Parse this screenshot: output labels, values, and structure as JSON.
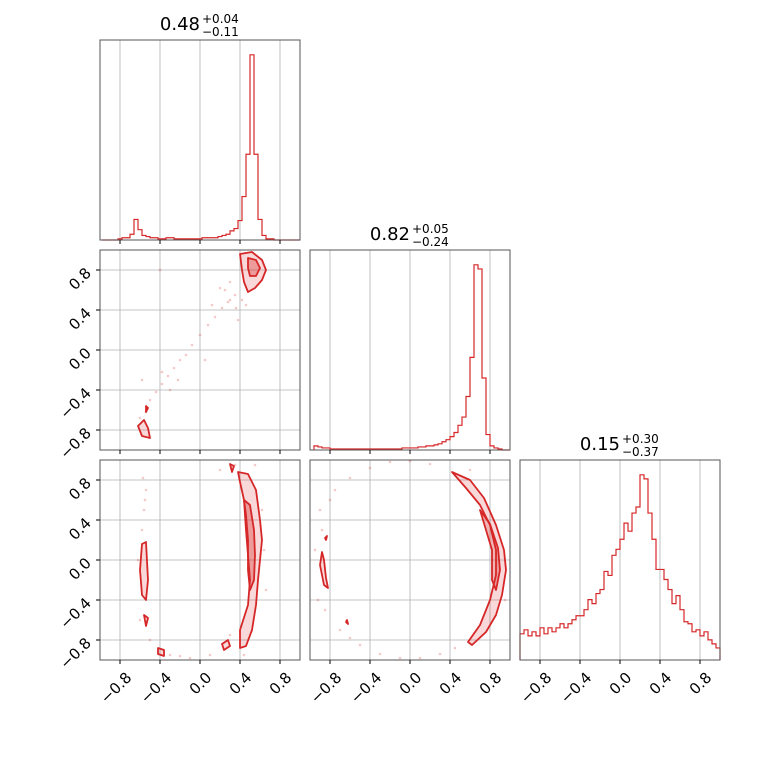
{
  "chart_data": {
    "type": "corner",
    "color": "#d62728",
    "axis_range": [
      -1.0,
      1.0
    ],
    "tick_labels": [
      "−0.8",
      "−0.4",
      "0.0",
      "0.4",
      "0.8"
    ],
    "tick_values": [
      -0.8,
      -0.4,
      0.0,
      0.4,
      0.8
    ],
    "grid": true,
    "titles": [
      {
        "median": "0.48",
        "plus": "+0.04",
        "minus": "−0.11"
      },
      {
        "median": "0.82",
        "plus": "+0.05",
        "minus": "−0.24"
      },
      {
        "median": "0.15",
        "plus": "+0.30",
        "minus": "−0.37"
      }
    ],
    "marginals": [
      {
        "bin_edges_start": -0.98,
        "bin_width": 0.04,
        "values": [
          0,
          0,
          0,
          0,
          1,
          2,
          2,
          5,
          18,
          9,
          4,
          3,
          2,
          2,
          1,
          1,
          2,
          2,
          1,
          1,
          1,
          1,
          1,
          1,
          1,
          2,
          2,
          2,
          2,
          3,
          4,
          5,
          8,
          10,
          17,
          38,
          75,
          162,
          75,
          18,
          4,
          1,
          1,
          0,
          0,
          0,
          0,
          0,
          0,
          0
        ]
      },
      {
        "bin_edges_start": -0.96,
        "bin_width": 0.04,
        "values": [
          4,
          3,
          2,
          2,
          1,
          1,
          1,
          1,
          1,
          1,
          1,
          1,
          1,
          1,
          1,
          1,
          1,
          1,
          1,
          1,
          1,
          1,
          2,
          2,
          2,
          2,
          3,
          3,
          4,
          4,
          5,
          6,
          8,
          10,
          13,
          17,
          24,
          32,
          52,
          90,
          180,
          176,
          70,
          15,
          4,
          2,
          1,
          0,
          0,
          0
        ]
      },
      {
        "bin_edges_start": -1.0,
        "bin_width": 0.04,
        "values": [
          13,
          15,
          12,
          14,
          12,
          16,
          13,
          16,
          14,
          16,
          18,
          16,
          18,
          20,
          22,
          22,
          25,
          30,
          28,
          33,
          35,
          44,
          42,
          52,
          55,
          60,
          68,
          64,
          73,
          76,
          92,
          90,
          73,
          60,
          45,
          45,
          40,
          35,
          28,
          32,
          25,
          19,
          18,
          14,
          15,
          12,
          14,
          10,
          8,
          6
        ]
      }
    ],
    "pairs": [
      {
        "x_index": 0,
        "y_index": 1,
        "contours": [
          {
            "level": "outer",
            "points": [
              [
                0.4,
                0.96
              ],
              [
                0.52,
                0.98
              ],
              [
                0.62,
                0.9
              ],
              [
                0.66,
                0.8
              ],
              [
                0.62,
                0.7
              ],
              [
                0.55,
                0.62
              ],
              [
                0.48,
                0.58
              ],
              [
                0.44,
                0.68
              ],
              [
                0.42,
                0.8
              ]
            ]
          },
          {
            "level": "inner",
            "points": [
              [
                0.48,
                0.92
              ],
              [
                0.56,
                0.9
              ],
              [
                0.6,
                0.82
              ],
              [
                0.56,
                0.74
              ],
              [
                0.5,
                0.74
              ],
              [
                0.48,
                0.82
              ]
            ]
          },
          {
            "level": "outer",
            "points": [
              [
                -0.62,
                -0.76
              ],
              [
                -0.56,
                -0.7
              ],
              [
                -0.52,
                -0.78
              ],
              [
                -0.5,
                -0.88
              ],
              [
                -0.58,
                -0.86
              ]
            ]
          },
          {
            "level": "inner",
            "points": [
              [
                -0.54,
                -0.56
              ],
              [
                -0.52,
                -0.58
              ],
              [
                -0.54,
                -0.62
              ]
            ]
          }
        ],
        "scatter": [
          [
            0.35,
            0.55
          ],
          [
            0.3,
            0.5
          ],
          [
            0.22,
            0.42
          ],
          [
            0.15,
            0.33
          ],
          [
            0.08,
            0.25
          ],
          [
            0.0,
            0.15
          ],
          [
            -0.08,
            0.05
          ],
          [
            -0.14,
            -0.05
          ],
          [
            -0.2,
            -0.1
          ],
          [
            -0.26,
            -0.18
          ],
          [
            -0.32,
            -0.26
          ],
          [
            -0.38,
            -0.34
          ],
          [
            -0.44,
            -0.42
          ],
          [
            -0.5,
            -0.5
          ],
          [
            -0.54,
            -0.62
          ],
          [
            0.25,
            0.6
          ],
          [
            0.28,
            0.48
          ],
          [
            0.12,
            0.45
          ],
          [
            -0.3,
            -0.4
          ],
          [
            -0.38,
            -0.22
          ],
          [
            0.36,
            0.42
          ],
          [
            0.2,
            0.62
          ],
          [
            -0.4,
            0.8
          ],
          [
            0.05,
            -0.1
          ],
          [
            -0.22,
            -0.3
          ],
          [
            0.42,
            0.5
          ],
          [
            0.46,
            0.45
          ],
          [
            0.3,
            0.68
          ],
          [
            0.38,
            0.3
          ],
          [
            -0.58,
            -0.3
          ],
          [
            -0.6,
            -0.68
          ]
        ]
      },
      {
        "x_index": 0,
        "y_index": 2,
        "contours": [
          {
            "level": "outer",
            "points": [
              [
                0.38,
                0.88
              ],
              [
                0.48,
                0.86
              ],
              [
                0.56,
                0.7
              ],
              [
                0.6,
                0.4
              ],
              [
                0.62,
                0.2
              ],
              [
                0.6,
                0.0
              ],
              [
                0.58,
                -0.2
              ],
              [
                0.56,
                -0.45
              ],
              [
                0.52,
                -0.7
              ],
              [
                0.46,
                -0.86
              ],
              [
                0.4,
                -0.88
              ],
              [
                0.4,
                -0.7
              ],
              [
                0.48,
                -0.45
              ],
              [
                0.5,
                -0.2
              ],
              [
                0.48,
                0.05
              ],
              [
                0.46,
                0.3
              ],
              [
                0.44,
                0.6
              ],
              [
                0.4,
                0.78
              ]
            ]
          },
          {
            "level": "inner",
            "points": [
              [
                0.44,
                0.6
              ],
              [
                0.5,
                0.55
              ],
              [
                0.54,
                0.3
              ],
              [
                0.55,
                0.05
              ],
              [
                0.54,
                -0.2
              ],
              [
                0.5,
                -0.3
              ],
              [
                0.48,
                -0.1
              ],
              [
                0.48,
                0.2
              ],
              [
                0.46,
                0.45
              ]
            ]
          },
          {
            "level": "outer",
            "points": [
              [
                -0.58,
                0.16
              ],
              [
                -0.54,
                0.18
              ],
              [
                -0.52,
                -0.2
              ],
              [
                -0.54,
                -0.4
              ],
              [
                -0.58,
                -0.35
              ],
              [
                -0.6,
                -0.1
              ]
            ]
          },
          {
            "level": "outer",
            "points": [
              [
                -0.56,
                -0.55
              ],
              [
                -0.52,
                -0.58
              ],
              [
                -0.54,
                -0.66
              ]
            ]
          },
          {
            "level": "outer",
            "points": [
              [
                -0.42,
                -0.88
              ],
              [
                -0.36,
                -0.9
              ],
              [
                -0.36,
                -0.96
              ],
              [
                -0.42,
                -0.94
              ]
            ]
          },
          {
            "level": "outer",
            "points": [
              [
                0.22,
                -0.84
              ],
              [
                0.28,
                -0.8
              ],
              [
                0.3,
                -0.86
              ],
              [
                0.24,
                -0.9
              ]
            ]
          },
          {
            "level": "outer",
            "points": [
              [
                0.3,
                0.96
              ],
              [
                0.34,
                0.94
              ],
              [
                0.32,
                0.88
              ]
            ]
          }
        ],
        "scatter": [
          [
            -0.55,
            0.6
          ],
          [
            -0.58,
            0.3
          ],
          [
            -0.6,
            -0.6
          ],
          [
            -0.5,
            -0.8
          ],
          [
            -0.3,
            -0.95
          ],
          [
            -0.1,
            -0.98
          ],
          [
            0.1,
            -0.95
          ],
          [
            0.3,
            -0.75
          ],
          [
            0.2,
            0.9
          ],
          [
            0.35,
            0.95
          ],
          [
            -0.54,
            0.7
          ],
          [
            -0.56,
            0.5
          ],
          [
            0.62,
            0.5
          ],
          [
            0.66,
            -0.3
          ],
          [
            -0.62,
            0.0
          ],
          [
            0.44,
            -0.95
          ],
          [
            -0.2,
            -0.96
          ],
          [
            0.64,
            0.1
          ],
          [
            -0.57,
            0.82
          ],
          [
            0.55,
            0.95
          ]
        ]
      },
      {
        "x_index": 1,
        "y_index": 2,
        "contours": [
          {
            "level": "outer",
            "points": [
              [
                0.42,
                0.88
              ],
              [
                0.6,
                0.8
              ],
              [
                0.74,
                0.62
              ],
              [
                0.86,
                0.35
              ],
              [
                0.94,
                0.1
              ],
              [
                0.96,
                -0.1
              ],
              [
                0.92,
                -0.35
              ],
              [
                0.86,
                -0.55
              ],
              [
                0.76,
                -0.72
              ],
              [
                0.62,
                -0.85
              ],
              [
                0.58,
                -0.82
              ],
              [
                0.7,
                -0.65
              ],
              [
                0.8,
                -0.4
              ],
              [
                0.86,
                -0.15
              ],
              [
                0.86,
                0.1
              ],
              [
                0.8,
                0.35
              ],
              [
                0.7,
                0.55
              ],
              [
                0.56,
                0.72
              ]
            ]
          },
          {
            "level": "inner",
            "points": [
              [
                0.7,
                0.5
              ],
              [
                0.8,
                0.36
              ],
              [
                0.88,
                0.12
              ],
              [
                0.9,
                -0.1
              ],
              [
                0.86,
                -0.3
              ],
              [
                0.82,
                -0.2
              ],
              [
                0.82,
                0.1
              ],
              [
                0.76,
                0.3
              ]
            ]
          },
          {
            "level": "outer",
            "points": [
              [
                -0.88,
                0.08
              ],
              [
                -0.86,
                0.0
              ],
              [
                -0.84,
                -0.18
              ],
              [
                -0.82,
                -0.28
              ],
              [
                -0.86,
                -0.25
              ],
              [
                -0.9,
                -0.05
              ]
            ]
          },
          {
            "level": "outer",
            "points": [
              [
                -0.85,
                0.22
              ],
              [
                -0.83,
                0.24
              ],
              [
                -0.84,
                0.2
              ]
            ]
          },
          {
            "level": "outer",
            "points": [
              [
                -0.64,
                -0.62
              ],
              [
                -0.62,
                -0.64
              ],
              [
                -0.63,
                -0.6
              ]
            ]
          }
        ],
        "scatter": [
          [
            -0.9,
            0.5
          ],
          [
            -0.8,
            0.6
          ],
          [
            -0.6,
            0.82
          ],
          [
            -0.4,
            0.92
          ],
          [
            -0.2,
            0.98
          ],
          [
            0.0,
            0.99
          ],
          [
            0.2,
            0.96
          ],
          [
            -0.92,
            -0.4
          ],
          [
            -0.85,
            -0.5
          ],
          [
            -0.7,
            -0.7
          ],
          [
            -0.5,
            -0.85
          ],
          [
            -0.3,
            -0.94
          ],
          [
            -0.1,
            -0.98
          ],
          [
            0.1,
            -0.98
          ],
          [
            0.3,
            -0.94
          ],
          [
            0.45,
            -0.88
          ],
          [
            -0.88,
            0.3
          ],
          [
            -0.95,
            0.1
          ],
          [
            0.95,
            -0.4
          ],
          [
            0.6,
            0.9
          ],
          [
            -0.75,
            0.7
          ],
          [
            -0.6,
            -0.78
          ]
        ]
      }
    ]
  }
}
